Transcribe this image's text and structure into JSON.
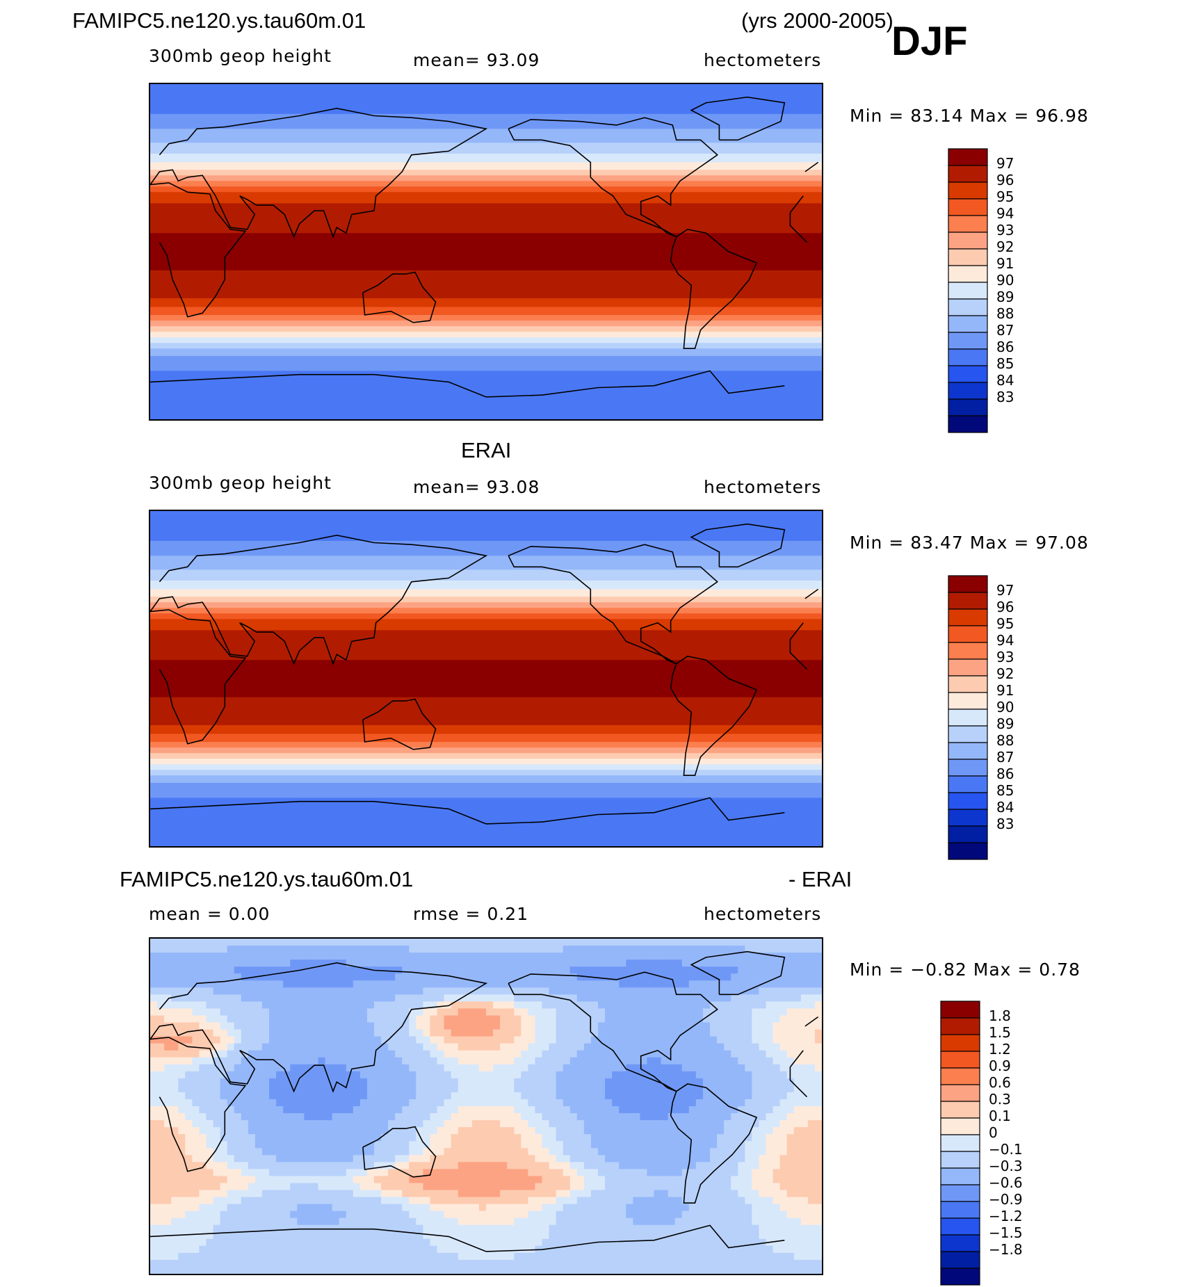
{
  "header": {
    "case_name": "FAMIPC5.ne120.ys.tau60m.01",
    "years": "(yrs 2000-2005)",
    "season": "DJF"
  },
  "panels": [
    {
      "id": "model",
      "title": "",
      "variable": "300mb  geop  height",
      "stat_text": "mean=   93.09",
      "units": "hectometers",
      "minmax": "Min =   83.14  Max =   96.98",
      "colorbar_levels": [
        "97",
        "96",
        "95",
        "94",
        "93",
        "92",
        "91",
        "90",
        "89",
        "88",
        "87",
        "86",
        "85",
        "84",
        "83"
      ],
      "colors": [
        "#8a0000",
        "#b11c00",
        "#d93a00",
        "#f25822",
        "#fb7f4f",
        "#fca383",
        "#fdcbb0",
        "#feeadb",
        "#d8e8fb",
        "#b7d1fa",
        "#94b7fa",
        "#6f98f6",
        "#4a78f4",
        "#2655ef",
        "#0d36cf",
        "#011fa2",
        "#00087a"
      ],
      "field_bands": [
        {
          "lat": 90,
          "value": 84.5
        },
        {
          "lat": 78,
          "value": 85
        },
        {
          "lat": 70,
          "value": 86
        },
        {
          "lat": 62,
          "value": 87
        },
        {
          "lat": 55,
          "value": 88
        },
        {
          "lat": 48,
          "value": 89.5
        },
        {
          "lat": 42,
          "value": 91
        },
        {
          "lat": 36,
          "value": 93
        },
        {
          "lat": 30,
          "value": 95
        },
        {
          "lat": 22,
          "value": 96
        },
        {
          "lat": 10,
          "value": 96.5
        },
        {
          "lat": -10,
          "value": 96.5
        },
        {
          "lat": -25,
          "value": 95.5
        },
        {
          "lat": -32,
          "value": 94
        },
        {
          "lat": -38,
          "value": 92
        },
        {
          "lat": -44,
          "value": 90
        },
        {
          "lat": -50,
          "value": 88
        },
        {
          "lat": -56,
          "value": 86.5
        },
        {
          "lat": -64,
          "value": 85.5
        },
        {
          "lat": -75,
          "value": 85
        },
        {
          "lat": -90,
          "value": 85
        }
      ]
    },
    {
      "id": "obs",
      "title": "ERAI",
      "variable": "300mb  geop  height",
      "stat_text": "mean=   93.08",
      "units": "hectometers",
      "minmax": "Min =   83.47  Max =   97.08",
      "colorbar_levels": [
        "97",
        "96",
        "95",
        "94",
        "93",
        "92",
        "91",
        "90",
        "89",
        "88",
        "87",
        "86",
        "85",
        "84",
        "83"
      ],
      "colors": [
        "#8a0000",
        "#b11c00",
        "#d93a00",
        "#f25822",
        "#fb7f4f",
        "#fca383",
        "#fdcbb0",
        "#feeadb",
        "#d8e8fb",
        "#b7d1fa",
        "#94b7fa",
        "#6f98f6",
        "#4a78f4",
        "#2655ef",
        "#0d36cf",
        "#011fa2",
        "#00087a"
      ],
      "field_bands": [
        {
          "lat": 90,
          "value": 84.5
        },
        {
          "lat": 78,
          "value": 85
        },
        {
          "lat": 70,
          "value": 86
        },
        {
          "lat": 62,
          "value": 87
        },
        {
          "lat": 55,
          "value": 88
        },
        {
          "lat": 48,
          "value": 89.5
        },
        {
          "lat": 42,
          "value": 91
        },
        {
          "lat": 36,
          "value": 93
        },
        {
          "lat": 30,
          "value": 95
        },
        {
          "lat": 22,
          "value": 96
        },
        {
          "lat": 10,
          "value": 96.5
        },
        {
          "lat": -10,
          "value": 96.5
        },
        {
          "lat": -25,
          "value": 95.5
        },
        {
          "lat": -32,
          "value": 94
        },
        {
          "lat": -38,
          "value": 92
        },
        {
          "lat": -44,
          "value": 90
        },
        {
          "lat": -50,
          "value": 88
        },
        {
          "lat": -56,
          "value": 86.5
        },
        {
          "lat": -64,
          "value": 85.5
        },
        {
          "lat": -75,
          "value": 84.5
        },
        {
          "lat": -90,
          "value": 85
        }
      ]
    },
    {
      "id": "diff",
      "title_left": "FAMIPC5.ne120.ys.tau60m.01",
      "title_right": "- ERAI",
      "stat_left": "mean =     0.00",
      "stat_text": "rmse =     0.21",
      "units": "hectometers",
      "minmax": "Min =   −0.82  Max =     0.78",
      "colorbar_levels": [
        "1.8",
        "1.5",
        "1.2",
        "0.9",
        "0.6",
        "0.3",
        "0.1",
        "0",
        "−0.1",
        "−0.3",
        "−0.6",
        "−0.9",
        "−1.2",
        "−1.5",
        "−1.8"
      ],
      "colors": [
        "#8a0000",
        "#b11c00",
        "#d93a00",
        "#f25822",
        "#fb7f4f",
        "#fca383",
        "#fdcbb0",
        "#feeadb",
        "#d8e8fb",
        "#b7d1fa",
        "#94b7fa",
        "#6f98f6",
        "#4a78f4",
        "#2655ef",
        "#0d36cf",
        "#011fa2",
        "#00087a"
      ]
    }
  ]
}
